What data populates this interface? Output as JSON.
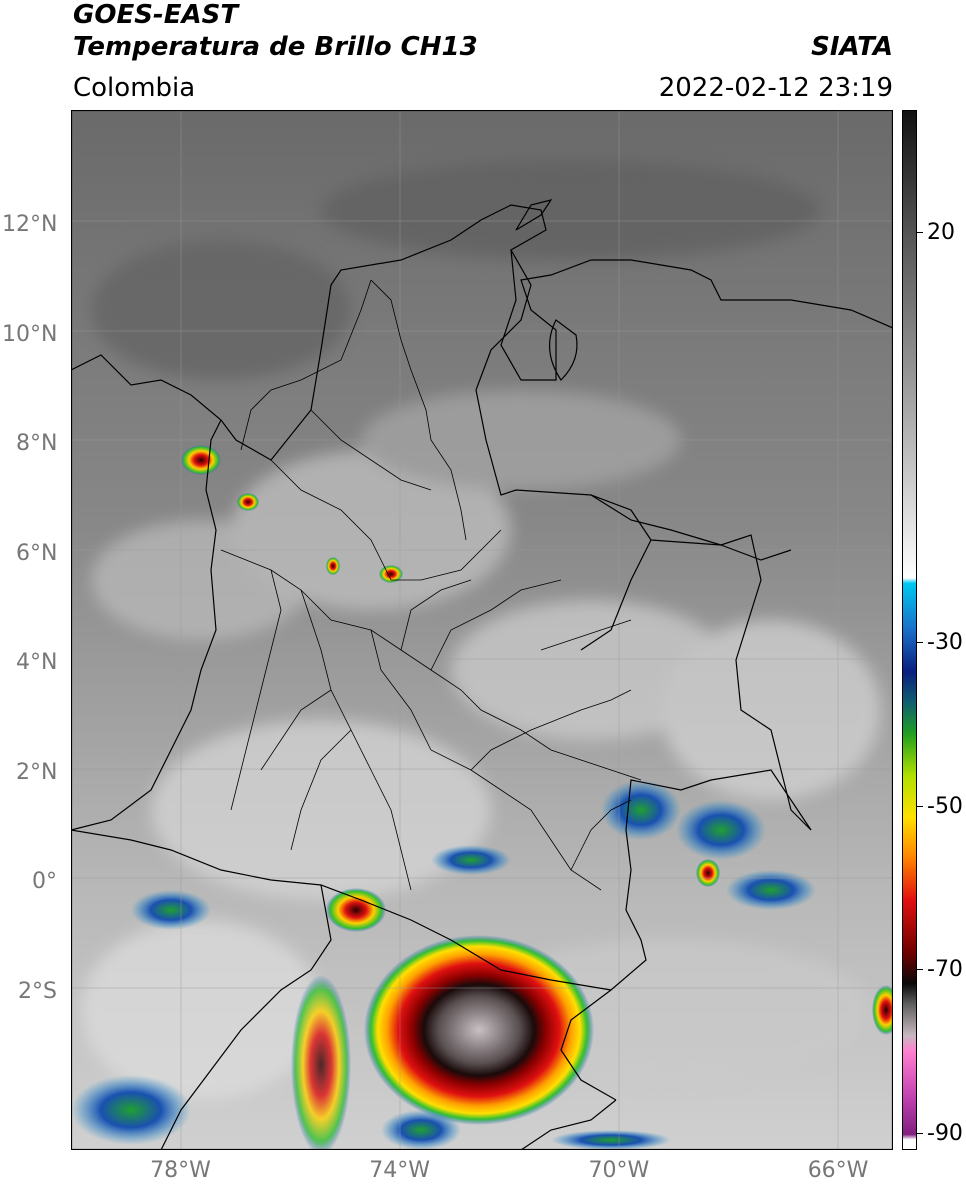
{
  "header": {
    "satellite": "GOES-EAST",
    "product": "Temperatura de Brillo CH13",
    "region": "Colombia",
    "source": "SIATA",
    "datetime": "2022-02-12 23:19"
  },
  "map": {
    "lon_range": [
      -80,
      -65
    ],
    "lat_range": [
      -4.9,
      14.1
    ],
    "x_ticks": [
      {
        "lon": -78,
        "label": "78°W"
      },
      {
        "lon": -74,
        "label": "74°W"
      },
      {
        "lon": -70,
        "label": "70°W"
      },
      {
        "lon": -66,
        "label": "66°W"
      }
    ],
    "y_ticks": [
      {
        "lat": 12,
        "label": "12°N"
      },
      {
        "lat": 10,
        "label": "10°N"
      },
      {
        "lat": 8,
        "label": "8°N"
      },
      {
        "lat": 6,
        "label": "6°N"
      },
      {
        "lat": 4,
        "label": "4°N"
      },
      {
        "lat": 2,
        "label": "2°N"
      },
      {
        "lat": 0,
        "label": "0°"
      },
      {
        "lat": -2,
        "label": "2°S"
      }
    ],
    "colors": {
      "background": "#6e6e6e",
      "border": "#000000",
      "grid": "#9a9a9a"
    }
  },
  "colorbar": {
    "range": [
      -92,
      35
    ],
    "ticks": [
      {
        "value": 20,
        "label": "20"
      },
      {
        "value": -30,
        "label": "-30"
      },
      {
        "value": -50,
        "label": "-50"
      },
      {
        "value": -70,
        "label": "-70"
      },
      {
        "value": -90,
        "label": "-90"
      }
    ]
  }
}
